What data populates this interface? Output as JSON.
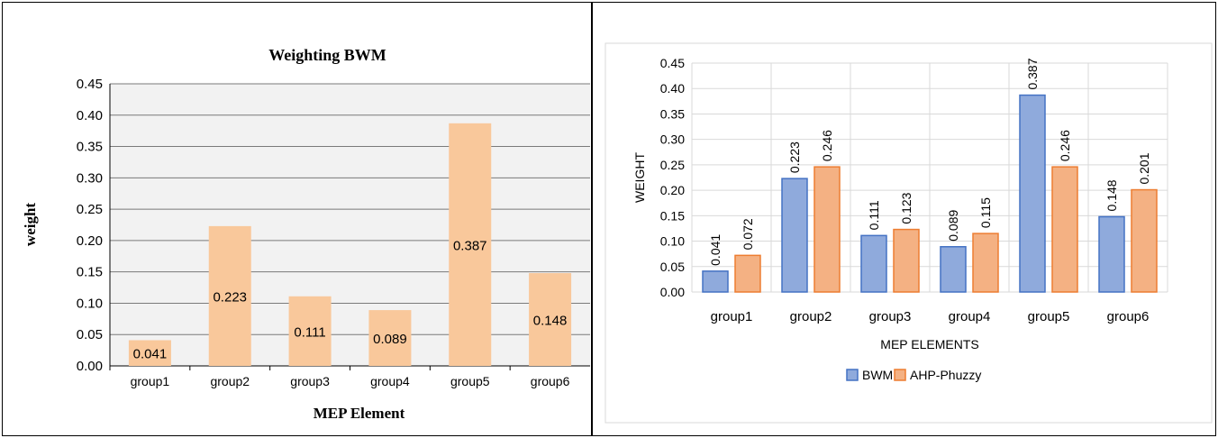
{
  "chart_data": [
    {
      "type": "bar",
      "title": "Weighting BWM",
      "xlabel": "MEP Element",
      "ylabel": "weight",
      "ylim": [
        0,
        0.45
      ],
      "yticks": [
        "0.00",
        "0.05",
        "0.10",
        "0.15",
        "0.20",
        "0.25",
        "0.30",
        "0.35",
        "0.40",
        "0.45"
      ],
      "categories": [
        "group1",
        "group2",
        "group3",
        "group4",
        "group5",
        "group6"
      ],
      "series": [
        {
          "values": [
            0.041,
            0.223,
            0.111,
            0.089,
            0.387,
            0.148
          ],
          "labels": [
            "0.041",
            "0.223",
            "0.111",
            "0.089",
            "0.387",
            "0.148"
          ],
          "color": "#f9c89b"
        }
      ],
      "grid": true,
      "legend": "none"
    },
    {
      "type": "bar",
      "title": "",
      "xlabel": "MEP ELEMENTS",
      "ylabel": "WEIGHT",
      "ylim": [
        0,
        0.45
      ],
      "yticks": [
        "0.00",
        "0.05",
        "0.10",
        "0.15",
        "0.20",
        "0.25",
        "0.30",
        "0.35",
        "0.40",
        "0.45"
      ],
      "categories": [
        "group1",
        "group2",
        "group3",
        "group4",
        "group5",
        "group6"
      ],
      "series": [
        {
          "name": "BWM",
          "values": [
            0.041,
            0.223,
            0.111,
            0.089,
            0.387,
            0.148
          ],
          "labels": [
            "0.041",
            "0.223",
            "0.111",
            "0.089",
            "0.387",
            "0.148"
          ],
          "color": "#8faadc",
          "border": "#4472c4"
        },
        {
          "name": "AHP-Phuzzy",
          "values": [
            0.072,
            0.246,
            0.123,
            0.115,
            0.246,
            0.201
          ],
          "labels": [
            "0.072",
            "0.246",
            "0.123",
            "0.115",
            "0.246",
            "0.201"
          ],
          "color": "#f4b183",
          "border": "#ed7d31"
        }
      ],
      "grid": true,
      "legend": "bottom"
    }
  ]
}
